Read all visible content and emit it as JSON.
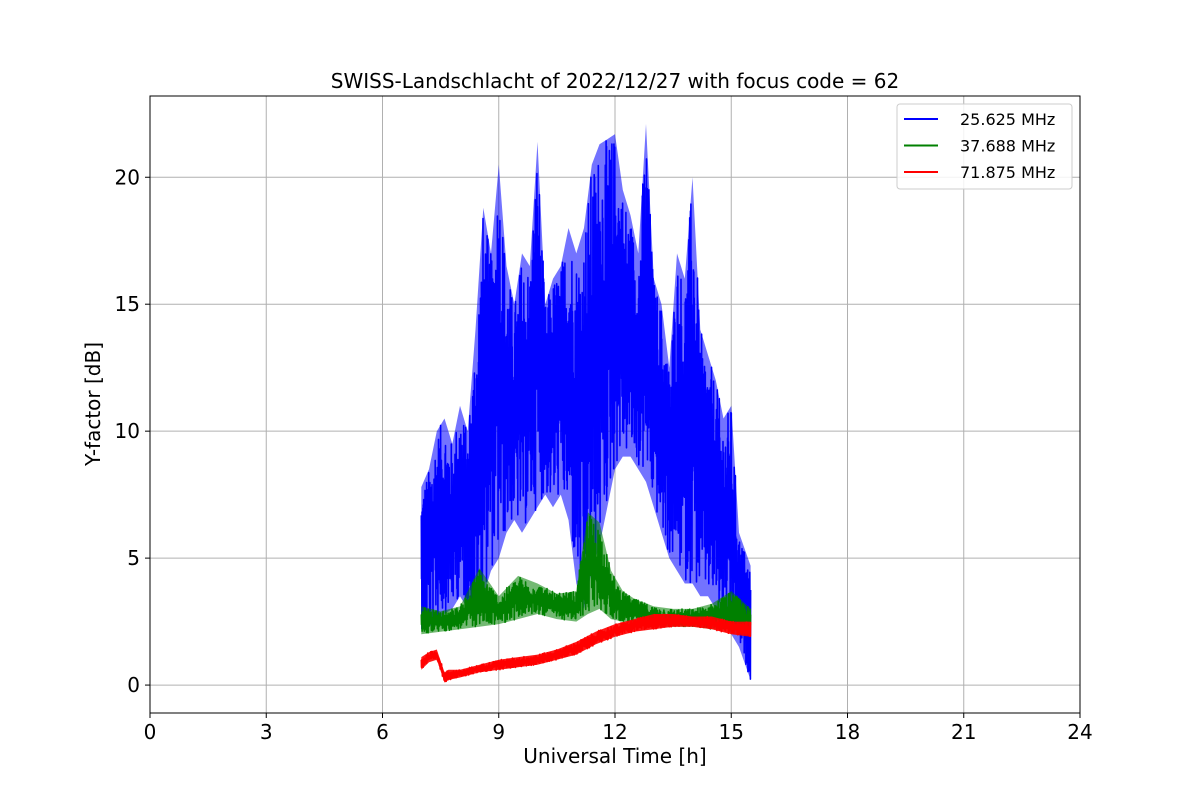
{
  "chart_data": {
    "type": "line",
    "title": "SWISS-Landschlacht of 2022/12/27 with focus code = 62",
    "xlabel": "Universal Time [h]",
    "ylabel": "Y-factor [dB]",
    "xlim": [
      0,
      24
    ],
    "ylim": [
      -1.1,
      23.2
    ],
    "xticks": [
      0,
      3,
      6,
      9,
      12,
      15,
      18,
      21,
      24
    ],
    "yticks": [
      0,
      5,
      10,
      15,
      20
    ],
    "grid": true,
    "legend_position": "top-right",
    "series": [
      {
        "name": "25.625 MHz",
        "color": "#0000ff",
        "x": [
          7.0,
          7.2,
          7.4,
          7.6,
          7.8,
          8.0,
          8.2,
          8.4,
          8.6,
          8.8,
          9.0,
          9.2,
          9.4,
          9.6,
          9.8,
          10.0,
          10.2,
          10.4,
          10.6,
          10.8,
          11.0,
          11.2,
          11.4,
          11.6,
          11.8,
          12.0,
          12.2,
          12.4,
          12.6,
          12.8,
          13.0,
          13.2,
          13.4,
          13.6,
          13.8,
          14.0,
          14.2,
          14.4,
          14.6,
          14.8,
          15.0,
          15.2,
          15.5
        ],
        "lower": [
          2.2,
          2.3,
          2.5,
          2.8,
          3.0,
          3.5,
          3.0,
          2.5,
          3.5,
          4.5,
          5.0,
          6.0,
          6.5,
          6.0,
          6.5,
          7.0,
          7.5,
          7.0,
          7.5,
          6.5,
          4.0,
          3.0,
          4.5,
          5.5,
          7.0,
          8.5,
          9.0,
          9.0,
          8.5,
          8.0,
          7.0,
          6.0,
          5.0,
          4.5,
          4.0,
          4.0,
          3.5,
          3.5,
          3.0,
          2.5,
          2.0,
          1.5,
          0.2
        ],
        "upper": [
          7.8,
          8.5,
          10.0,
          10.5,
          9.5,
          11.0,
          10.0,
          14.0,
          18.8,
          17.0,
          20.5,
          16.5,
          15.0,
          17.0,
          16.5,
          21.4,
          15.0,
          16.0,
          16.5,
          18.0,
          17.0,
          18.0,
          20.5,
          21.3,
          21.5,
          21.7,
          19.5,
          18.5,
          17.0,
          22.1,
          16.0,
          15.0,
          12.5,
          17.0,
          16.0,
          20.0,
          14.0,
          13.0,
          12.0,
          10.5,
          11.0,
          6.0,
          4.7
        ]
      },
      {
        "name": "37.688 MHz",
        "color": "#008000",
        "x": [
          7.0,
          7.5,
          8.0,
          8.5,
          9.0,
          9.5,
          10.0,
          10.5,
          11.0,
          11.3,
          11.6,
          11.9,
          12.2,
          12.5,
          13.0,
          13.5,
          14.0,
          14.5,
          15.0,
          15.5
        ],
        "lower": [
          2.0,
          2.1,
          2.2,
          2.3,
          2.4,
          2.6,
          2.8,
          2.6,
          2.5,
          2.8,
          3.0,
          2.6,
          2.5,
          2.4,
          2.3,
          2.3,
          2.3,
          2.2,
          2.2,
          2.2
        ],
        "upper": [
          3.1,
          2.9,
          3.1,
          4.6,
          3.5,
          4.3,
          4.0,
          3.6,
          3.7,
          6.8,
          6.4,
          4.5,
          3.7,
          3.4,
          3.1,
          3.0,
          3.0,
          3.2,
          3.7,
          3.0
        ]
      },
      {
        "name": "71.875 MHz",
        "color": "#ff0000",
        "x": [
          7.0,
          7.2,
          7.4,
          7.6,
          7.7,
          8.0,
          8.5,
          9.0,
          9.5,
          10.0,
          10.5,
          11.0,
          11.5,
          12.0,
          12.5,
          13.0,
          13.5,
          14.0,
          14.5,
          15.0,
          15.5
        ],
        "lower": [
          0.6,
          0.9,
          1.0,
          0.1,
          0.2,
          0.3,
          0.5,
          0.6,
          0.7,
          0.8,
          1.0,
          1.2,
          1.6,
          1.9,
          2.1,
          2.2,
          2.3,
          2.3,
          2.2,
          2.0,
          1.9
        ],
        "upper": [
          1.1,
          1.3,
          1.4,
          0.5,
          0.6,
          0.6,
          0.8,
          1.0,
          1.1,
          1.2,
          1.4,
          1.7,
          2.1,
          2.4,
          2.6,
          2.8,
          2.8,
          2.7,
          2.7,
          2.5,
          2.5
        ]
      }
    ]
  }
}
